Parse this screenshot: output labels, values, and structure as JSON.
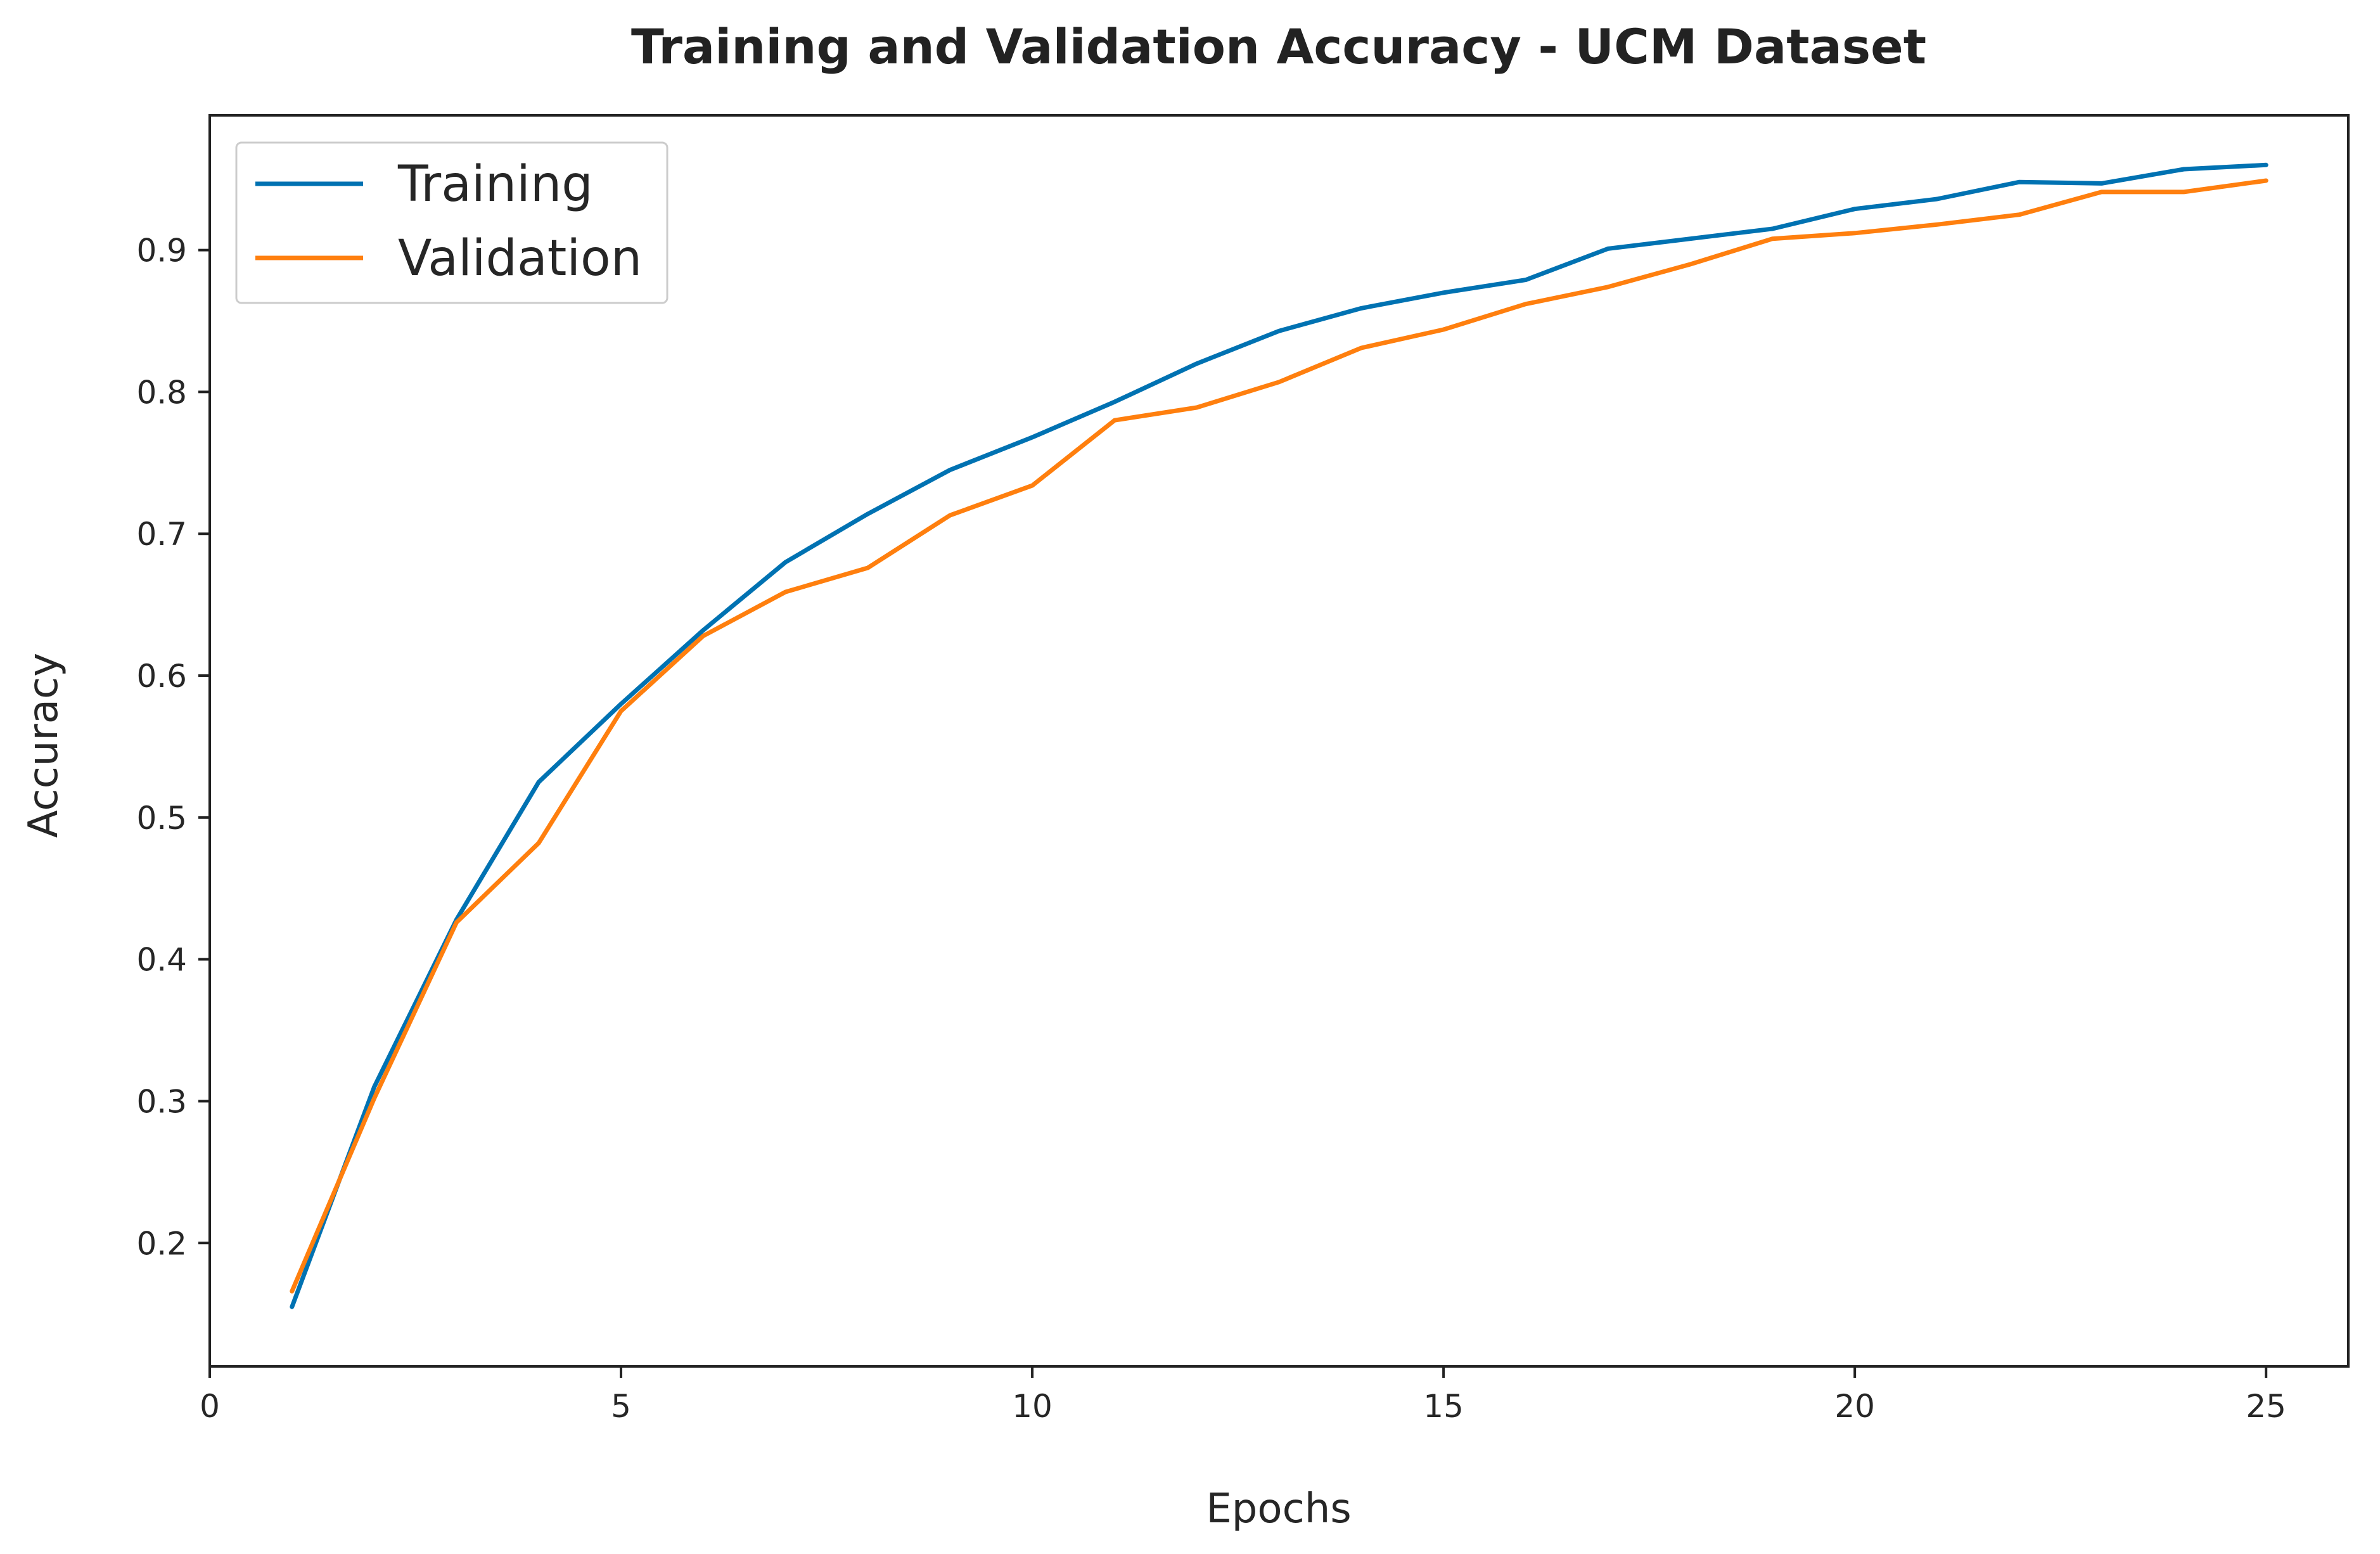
{
  "chart_data": {
    "type": "line",
    "title": "Training and Validation Accuracy - UCM Dataset",
    "xlabel": "Epochs",
    "ylabel": "Accuracy",
    "xlim": [
      0,
      26
    ],
    "ylim": [
      0.113,
      0.995
    ],
    "xticks": [
      0,
      5,
      10,
      15,
      20,
      25
    ],
    "yticks": [
      0.2,
      0.3,
      0.4,
      0.5,
      0.6,
      0.7,
      0.8,
      0.9
    ],
    "grid": false,
    "legend_position": "top-left",
    "x": [
      1,
      2,
      3,
      4,
      5,
      6,
      7,
      8,
      9,
      10,
      11,
      12,
      13,
      14,
      15,
      16,
      17,
      18,
      19,
      20,
      21,
      22,
      23,
      24,
      25
    ],
    "series": [
      {
        "name": "Training",
        "color": "#0072b2",
        "values": [
          0.155,
          0.31,
          0.428,
          0.525,
          0.58,
          0.632,
          0.68,
          0.714,
          0.745,
          0.768,
          0.793,
          0.82,
          0.843,
          0.859,
          0.87,
          0.879,
          0.901,
          0.908,
          0.915,
          0.929,
          0.936,
          0.948,
          0.947,
          0.957,
          0.96
        ]
      },
      {
        "name": "Validation",
        "color": "#ff7f0e",
        "values": [
          0.166,
          0.302,
          0.426,
          0.482,
          0.575,
          0.628,
          0.659,
          0.676,
          0.713,
          0.734,
          0.78,
          0.789,
          0.807,
          0.831,
          0.844,
          0.862,
          0.874,
          0.89,
          0.908,
          0.912,
          0.918,
          0.925,
          0.941,
          0.941,
          0.949
        ]
      }
    ]
  }
}
